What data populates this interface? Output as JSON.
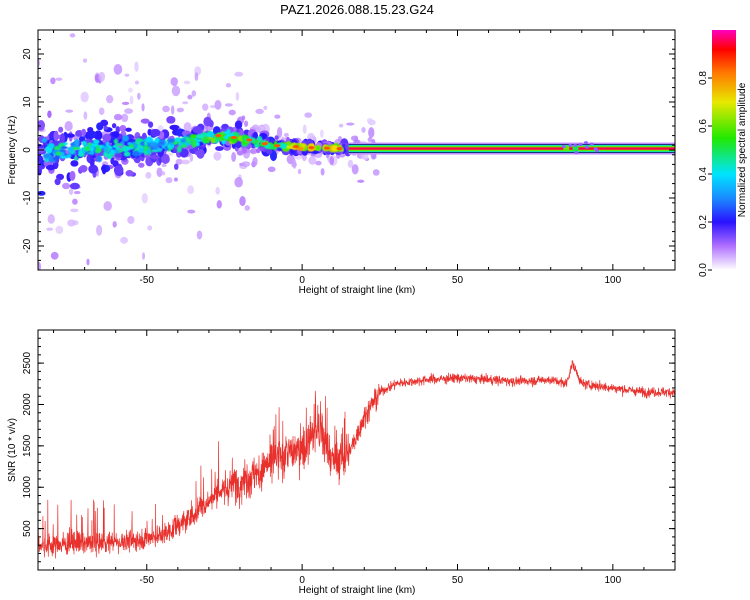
{
  "figure_title": "PAZ1.2026.088.15.23.G24",
  "colors": {
    "snr_line": "#e8302c",
    "carrier_band": "#e8182c",
    "axis": "#000000"
  },
  "chart_data": [
    {
      "type": "heatmap",
      "title": "PAZ1.2026.088.15.23.G24",
      "xlabel": "Height of straight line (km)",
      "ylabel": "Frequency (Hz)",
      "xlim": [
        -85,
        120
      ],
      "ylim": [
        -25,
        25
      ],
      "xticks": [
        -50,
        0,
        50,
        100
      ],
      "xtick_labels": [
        "-50",
        "0",
        "50",
        "100"
      ],
      "yticks": [
        -20,
        -10,
        0,
        10,
        20
      ],
      "ytick_labels": [
        "-20",
        "-10",
        "0",
        "10",
        "20"
      ],
      "colorbar": {
        "label": "Normalized spectral amplitude",
        "range": [
          0,
          1
        ],
        "ticks": [
          0.0,
          0.2,
          0.4,
          0.6,
          0.8
        ],
        "tick_labels": [
          "0.0",
          "0.2",
          "0.4",
          "0.6",
          "0.8"
        ]
      },
      "carrier": {
        "frequency": 0.3,
        "x_start": 15,
        "x_end": 120,
        "amplitude": 0.95
      },
      "ridge": [
        {
          "x": -82,
          "y": 0.0
        },
        {
          "x": -70,
          "y": 0.0
        },
        {
          "x": -55,
          "y": 0.5
        },
        {
          "x": -40,
          "y": 1.2
        },
        {
          "x": -30,
          "y": 2.8
        },
        {
          "x": -20,
          "y": 2.6
        },
        {
          "x": -10,
          "y": 1.0
        },
        {
          "x": 0,
          "y": 0.6
        },
        {
          "x": 10,
          "y": 0.3
        },
        {
          "x": 15,
          "y": 0.3
        }
      ],
      "bursts": [
        {
          "x": 85,
          "y": 0.3,
          "amplitude": 0.6
        },
        {
          "x": 88,
          "y": 0.3,
          "amplitude": 0.5
        }
      ]
    },
    {
      "type": "line",
      "xlabel": "Height of straight line (km)",
      "ylabel": "SNR (10 * v/v)",
      "xlim": [
        -85,
        120
      ],
      "ylim": [
        0,
        2900
      ],
      "xticks": [
        -50,
        0,
        50,
        100
      ],
      "xtick_labels": [
        "-50",
        "0",
        "50",
        "100"
      ],
      "yticks": [
        500,
        1000,
        1500,
        2000,
        2500
      ],
      "ytick_labels": [
        "500",
        "1000",
        "1500",
        "2000",
        "2500"
      ],
      "series": [
        {
          "name": "SNR",
          "x": [
            -85,
            -70,
            -55,
            -45,
            -35,
            -28,
            -22,
            -15,
            -10,
            -5,
            0,
            5,
            10,
            15,
            20,
            25,
            30,
            40,
            50,
            60,
            70,
            80,
            85,
            87,
            90,
            100,
            110,
            120
          ],
          "values": [
            300,
            320,
            350,
            420,
            650,
            900,
            1050,
            1150,
            1300,
            1400,
            1450,
            1700,
            1300,
            1400,
            1850,
            2150,
            2250,
            2300,
            2320,
            2300,
            2280,
            2300,
            2250,
            2500,
            2250,
            2200,
            2150,
            2150
          ]
        }
      ]
    }
  ]
}
